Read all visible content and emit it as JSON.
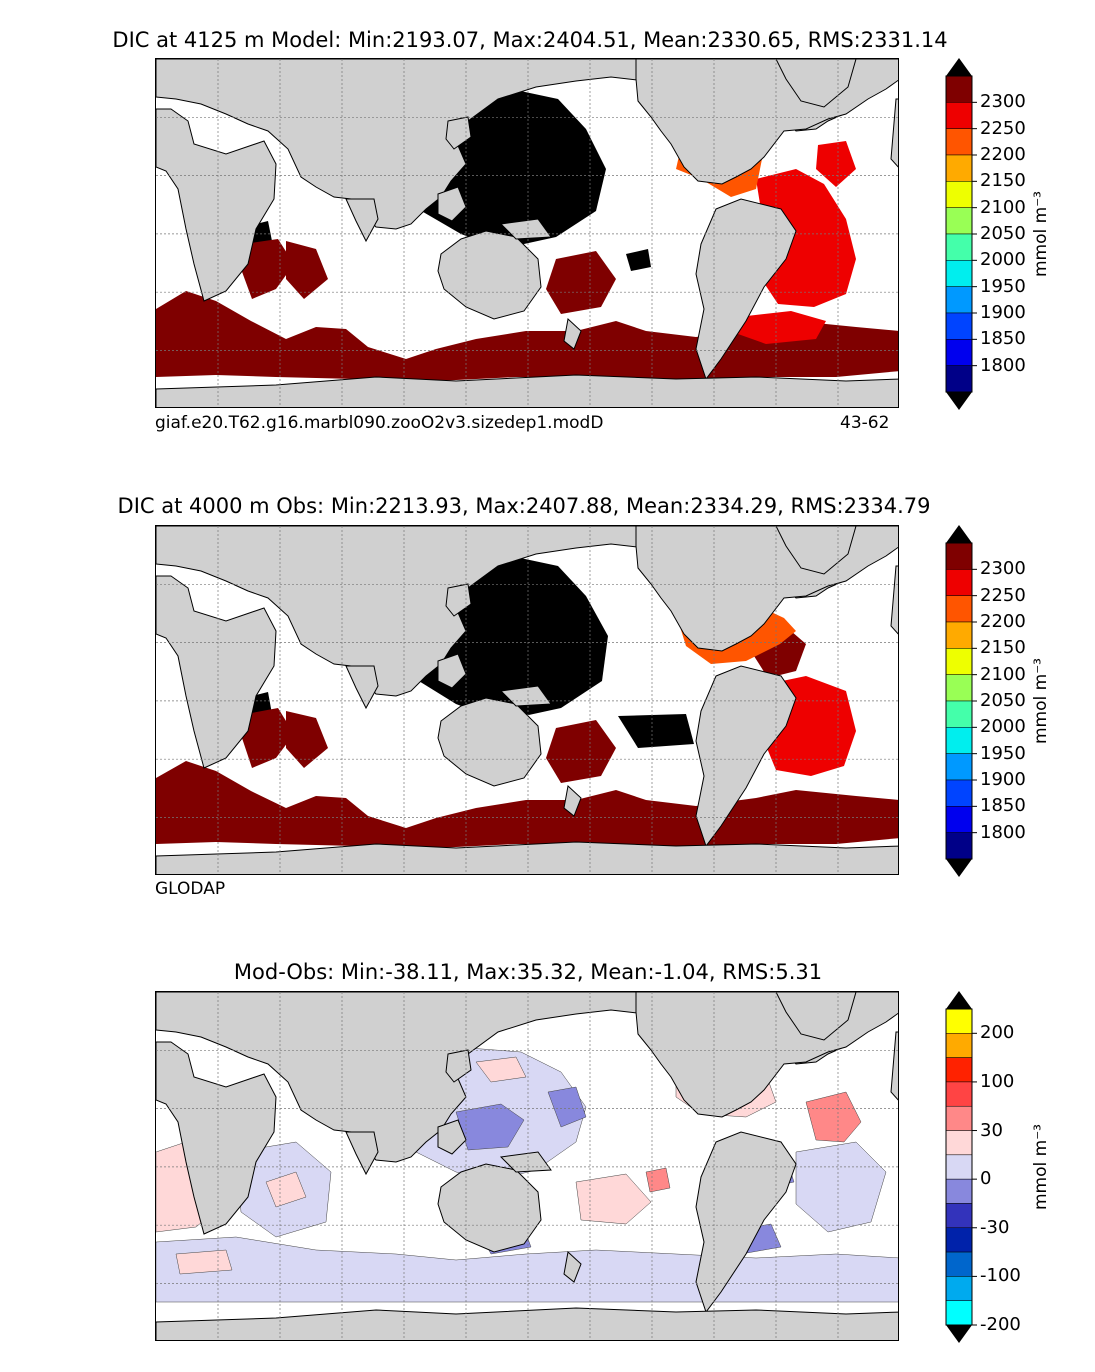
{
  "panels": [
    {
      "title": "DIC at 4125 m Model: Min:2193.07, Max:2404.51, Mean:2330.65, RMS:2331.14",
      "caption_left": "giaf.e20.T62.g16.marbl090.zooO2v3.sizedep1.modD",
      "caption_right": "43-62"
    },
    {
      "title": "DIC at 4000 m Obs: Min:2213.93, Max:2407.88, Mean:2334.29, RMS:2334.79",
      "caption_left": "GLODAP",
      "caption_right": ""
    },
    {
      "title": "Mod-Obs: Min:-38.11, Max:35.32, Mean:-1.04, RMS:5.31",
      "caption_left": "",
      "caption_right": ""
    }
  ],
  "colorbars": [
    {
      "unit": "mmol m⁻³",
      "ticks": [
        "2300",
        "2250",
        "2200",
        "2150",
        "2100",
        "2050",
        "2000",
        "1950",
        "1900",
        "1850",
        "1800"
      ],
      "colors": [
        "#7f0000",
        "#ee0000",
        "#ff5500",
        "#ffaa00",
        "#eeff00",
        "#99ff55",
        "#44ffaa",
        "#00eeee",
        "#0099ff",
        "#0044ff",
        "#0000ee",
        "#000088"
      ],
      "extend_top": "#000000",
      "extend_bottom": "#000000"
    },
    {
      "unit": "mmol m⁻³",
      "ticks": [
        "2300",
        "2250",
        "2200",
        "2150",
        "2100",
        "2050",
        "2000",
        "1950",
        "1900",
        "1850",
        "1800"
      ],
      "colors": [
        "#7f0000",
        "#ee0000",
        "#ff5500",
        "#ffaa00",
        "#eeff00",
        "#99ff55",
        "#44ffaa",
        "#00eeee",
        "#0099ff",
        "#0044ff",
        "#0000ee",
        "#000088"
      ],
      "extend_top": "#000000",
      "extend_bottom": "#000000"
    },
    {
      "unit": "mmol m⁻³",
      "ticks": [
        "200",
        "100",
        "30",
        "0",
        "-30",
        "-100",
        "-200"
      ],
      "colors": [
        "#ffff00",
        "#ffaa00",
        "#ff2200",
        "#ff4444",
        "#ff8888",
        "#ffd8d8",
        "#d8d8f4",
        "#8888dd",
        "#3333bb",
        "#0022aa",
        "#0066cc",
        "#00aaee",
        "#00ffff"
      ],
      "extend_top": "#000000",
      "extend_bottom": "#000000"
    }
  ],
  "chart_data": [
    {
      "type": "heatmap",
      "title": "DIC at 4125 m Model: Min:2193.07, Max:2404.51, Mean:2330.65, RMS:2331.14",
      "variable": "DIC",
      "depth_m": 4125,
      "source": "Model",
      "stats": {
        "min": 2193.07,
        "max": 2404.51,
        "mean": 2330.65,
        "rms": 2331.14
      },
      "colorbar_levels": [
        1800,
        1850,
        1900,
        1950,
        2000,
        2050,
        2100,
        2150,
        2200,
        2250,
        2300
      ],
      "units": "mmol m^-3"
    },
    {
      "type": "heatmap",
      "title": "DIC at 4000 m Obs: Min:2213.93, Max:2407.88, Mean:2334.29, RMS:2334.79",
      "variable": "DIC",
      "depth_m": 4000,
      "source": "Obs",
      "stats": {
        "min": 2213.93,
        "max": 2407.88,
        "mean": 2334.29,
        "rms": 2334.79
      },
      "colorbar_levels": [
        1800,
        1850,
        1900,
        1950,
        2000,
        2050,
        2100,
        2150,
        2200,
        2250,
        2300
      ],
      "units": "mmol m^-3"
    },
    {
      "type": "heatmap",
      "title": "Mod-Obs: Min:-38.11, Max:35.32, Mean:-1.04, RMS:5.31",
      "variable": "DIC difference",
      "source": "Mod-Obs",
      "stats": {
        "min": -38.11,
        "max": 35.32,
        "mean": -1.04,
        "rms": 5.31
      },
      "colorbar_levels": [
        -200,
        -100,
        -30,
        0,
        30,
        100,
        200
      ],
      "units": "mmol m^-3"
    }
  ]
}
